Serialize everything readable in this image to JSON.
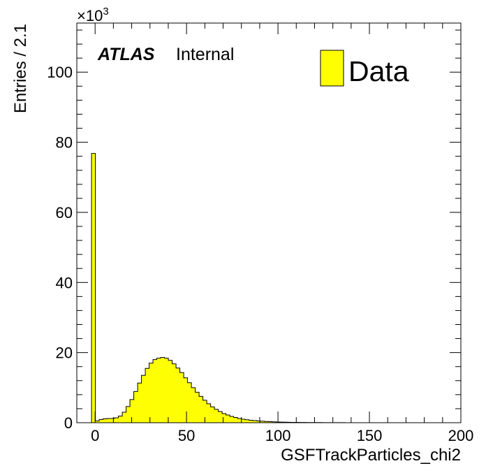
{
  "chart_data": {
    "type": "bar",
    "subtype": "histogram",
    "xlabel": "GSFTrackParticles_chi2",
    "ylabel": "Entries / 2.1",
    "y_multiplier_label": "×10",
    "y_multiplier_exponent": "3",
    "xlim": [
      -10,
      200
    ],
    "ylim": [
      0,
      114
    ],
    "y_units": "thousands of entries",
    "bin_width": 2.1,
    "x_start": -1.95,
    "grid": false,
    "legend_position": "top-right",
    "x_ticks": [
      "0",
      "50",
      "100",
      "150",
      "200"
    ],
    "y_ticks": [
      "0",
      "20",
      "40",
      "60",
      "80",
      "100"
    ],
    "atlas_label": "ATLAS",
    "atlas_sublabel": "Internal",
    "series": [
      {
        "name": "Data",
        "color": "#ffff00",
        "values": [
          76.8,
          0.5,
          0.9,
          1.1,
          1.2,
          1.2,
          1.4,
          1.9,
          3.0,
          4.6,
          6.6,
          8.9,
          11.3,
          13.5,
          15.5,
          17.0,
          18.0,
          18.4,
          18.6,
          18.4,
          17.8,
          16.8,
          15.6,
          14.3,
          12.8,
          11.4,
          10.0,
          8.7,
          7.5,
          6.4,
          5.4,
          4.5,
          3.8,
          3.2,
          2.6,
          2.2,
          1.8,
          1.5,
          1.2,
          1.0,
          0.85,
          0.7,
          0.6,
          0.5,
          0.42,
          0.35,
          0.3,
          0.25,
          0.21,
          0.18,
          0.15,
          0.13,
          0.11,
          0.1,
          0.08,
          0.07,
          0.06,
          0.05,
          0.045,
          0.04,
          0.035,
          0.03,
          0.025,
          0.02,
          0.018,
          0.015,
          0.012,
          0.01,
          0.01,
          0.008,
          0.007,
          0.006,
          0.005,
          0.004,
          0.004,
          0.003,
          0.003,
          0.002,
          0.002,
          0.002,
          0.001,
          0.001,
          0.001,
          0.001,
          0.001,
          0.001,
          0.001,
          0.001,
          0.001
        ]
      }
    ]
  }
}
